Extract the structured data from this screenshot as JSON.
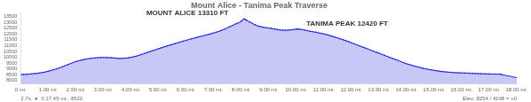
{
  "chart_data": {
    "type": "area",
    "title": "Mount Alice - Tanima Peak Traverse",
    "color": "#2222dd",
    "marker": "circle",
    "grid": false,
    "xlim": [
      0,
      18.0
    ],
    "ylim": [
      7700,
      13800
    ],
    "yticks": [
      8000,
      8500,
      9000,
      9500,
      10000,
      10500,
      11000,
      11500,
      12000,
      12500,
      13000,
      13500
    ],
    "xticks": [
      {
        "value": 0,
        "label": "0 mi."
      },
      {
        "value": 1,
        "label": "1.00 mi."
      },
      {
        "value": 2,
        "label": "2.00 mi."
      },
      {
        "value": 3,
        "label": "3.00 mi."
      },
      {
        "value": 4,
        "label": "4.00 mi."
      },
      {
        "value": 5,
        "label": "5.00 mi."
      },
      {
        "value": 6,
        "label": "6.00 mi."
      },
      {
        "value": 7,
        "label": "7.00 mi."
      },
      {
        "value": 8,
        "label": "8.00 mi."
      },
      {
        "value": 9,
        "label": "9.00 mi."
      },
      {
        "value": 10,
        "label": "10.00 mi."
      },
      {
        "value": 11,
        "label": "11.00 mi."
      },
      {
        "value": 12,
        "label": "12.00 mi."
      },
      {
        "value": 13,
        "label": "13.00 mi."
      },
      {
        "value": 14,
        "label": "14.00 mi."
      },
      {
        "value": 15,
        "label": "15.00 mi."
      },
      {
        "value": 16,
        "label": "16.00 mi."
      },
      {
        "value": 17,
        "label": "17.00 mi."
      },
      {
        "value": 18,
        "label": "18.00 mi."
      }
    ],
    "annotations": [
      {
        "text": "MOUNT ALICE 13310 FT",
        "x": 7.6,
        "y": 13310
      },
      {
        "text": "TANIMA PEAK 12420 FT",
        "x": 10.3,
        "y": 12420
      },
      {
        "text": "2.7s"
      },
      {
        "text": "●"
      },
      {
        "text": "0 17.45 mi., 8522"
      },
      {
        "text": "Elev: 8254 / 4248 = +0"
      }
    ],
    "x": [
      0.0,
      0.1,
      0.2,
      0.3,
      0.4,
      0.5,
      0.6,
      0.7,
      0.8,
      0.9,
      1.0,
      1.1,
      1.2,
      1.3,
      1.4,
      1.5,
      1.6,
      1.7,
      1.8,
      1.9,
      2.0,
      2.1,
      2.2,
      2.3,
      2.4,
      2.5,
      2.6,
      2.7,
      2.8,
      2.9,
      3.0,
      3.1,
      3.2,
      3.3,
      3.4,
      3.5,
      3.6,
      3.7,
      3.8,
      3.9,
      4.0,
      4.1,
      4.2,
      4.3,
      4.4,
      4.5,
      4.6,
      4.7,
      4.8,
      4.9,
      5.0,
      5.1,
      5.2,
      5.3,
      5.4,
      5.5,
      5.6,
      5.7,
      5.8,
      5.9,
      6.0,
      6.1,
      6.2,
      6.3,
      6.4,
      6.5,
      6.6,
      6.7,
      6.8,
      6.9,
      7.0,
      7.1,
      7.2,
      7.3,
      7.4,
      7.5,
      7.6,
      7.7,
      7.8,
      7.9,
      8.0,
      8.05,
      8.1,
      8.15,
      8.2,
      8.3,
      8.4,
      8.5,
      8.6,
      8.7,
      8.8,
      8.9,
      9.0,
      9.1,
      9.2,
      9.3,
      9.4,
      9.5,
      9.6,
      9.7,
      9.8,
      9.9,
      10.0,
      10.05,
      10.1,
      10.2,
      10.3,
      10.4,
      10.5,
      10.6,
      10.7,
      10.8,
      10.9,
      11.0,
      11.1,
      11.2,
      11.3,
      11.4,
      11.5,
      11.6,
      11.7,
      11.8,
      11.9,
      12.0,
      12.1,
      12.2,
      12.3,
      12.4,
      12.5,
      12.6,
      12.7,
      12.8,
      12.9,
      13.0,
      13.1,
      13.2,
      13.3,
      13.4,
      13.5,
      13.6,
      13.7,
      13.8,
      13.9,
      14.0,
      14.1,
      14.2,
      14.3,
      14.4,
      14.5,
      14.6,
      14.7,
      14.8,
      14.9,
      15.0,
      15.1,
      15.2,
      15.3,
      15.4,
      15.5,
      15.6,
      15.7,
      15.8,
      15.9,
      16.0,
      16.1,
      16.2,
      16.3,
      16.4,
      16.5,
      16.6,
      16.7,
      16.8,
      16.9,
      17.0,
      17.1,
      17.2,
      17.3,
      17.4,
      17.45,
      18.0
    ],
    "values": [
      8522,
      8530,
      8540,
      8560,
      8580,
      8600,
      8630,
      8660,
      8700,
      8750,
      8810,
      8870,
      8940,
      9010,
      9090,
      9180,
      9270,
      9360,
      9460,
      9550,
      9640,
      9700,
      9760,
      9810,
      9860,
      9900,
      9930,
      9950,
      9970,
      9985,
      9990,
      9985,
      9975,
      9960,
      9940,
      9920,
      9900,
      9910,
      9930,
      9960,
      10000,
      10050,
      10110,
      10180,
      10260,
      10340,
      10420,
      10500,
      10580,
      10660,
      10740,
      10820,
      10900,
      10970,
      11040,
      11110,
      11180,
      11250,
      11320,
      11390,
      11460,
      11530,
      11600,
      11660,
      11720,
      11780,
      11840,
      11900,
      11960,
      12020,
      12090,
      12160,
      12240,
      12330,
      12430,
      12540,
      12650,
      12760,
      12870,
      12970,
      13100,
      13200,
      13310,
      13260,
      13180,
      13050,
      12920,
      12800,
      12700,
      12640,
      12590,
      12550,
      12530,
      12480,
      12440,
      12400,
      12360,
      12330,
      12330,
      12340,
      12360,
      12390,
      12420,
      12430,
      12420,
      12390,
      12340,
      12290,
      12240,
      12200,
      12160,
      12110,
      12060,
      12010,
      11950,
      11880,
      11810,
      11740,
      11670,
      11590,
      11510,
      11430,
      11340,
      11250,
      11160,
      11070,
      10980,
      10890,
      10800,
      10710,
      10620,
      10530,
      10440,
      10350,
      10260,
      10170,
      10080,
      9990,
      9900,
      9810,
      9720,
      9630,
      9540,
      9450,
      9380,
      9310,
      9240,
      9180,
      9120,
      9060,
      9010,
      8960,
      8920,
      8880,
      8840,
      8810,
      8780,
      8750,
      8730,
      8710,
      8690,
      8680,
      8670,
      8660,
      8650,
      8640,
      8630,
      8620,
      8610,
      8600,
      8590,
      8580,
      8575,
      8570,
      8565,
      8560,
      8558,
      8555,
      8522,
      8254
    ]
  }
}
